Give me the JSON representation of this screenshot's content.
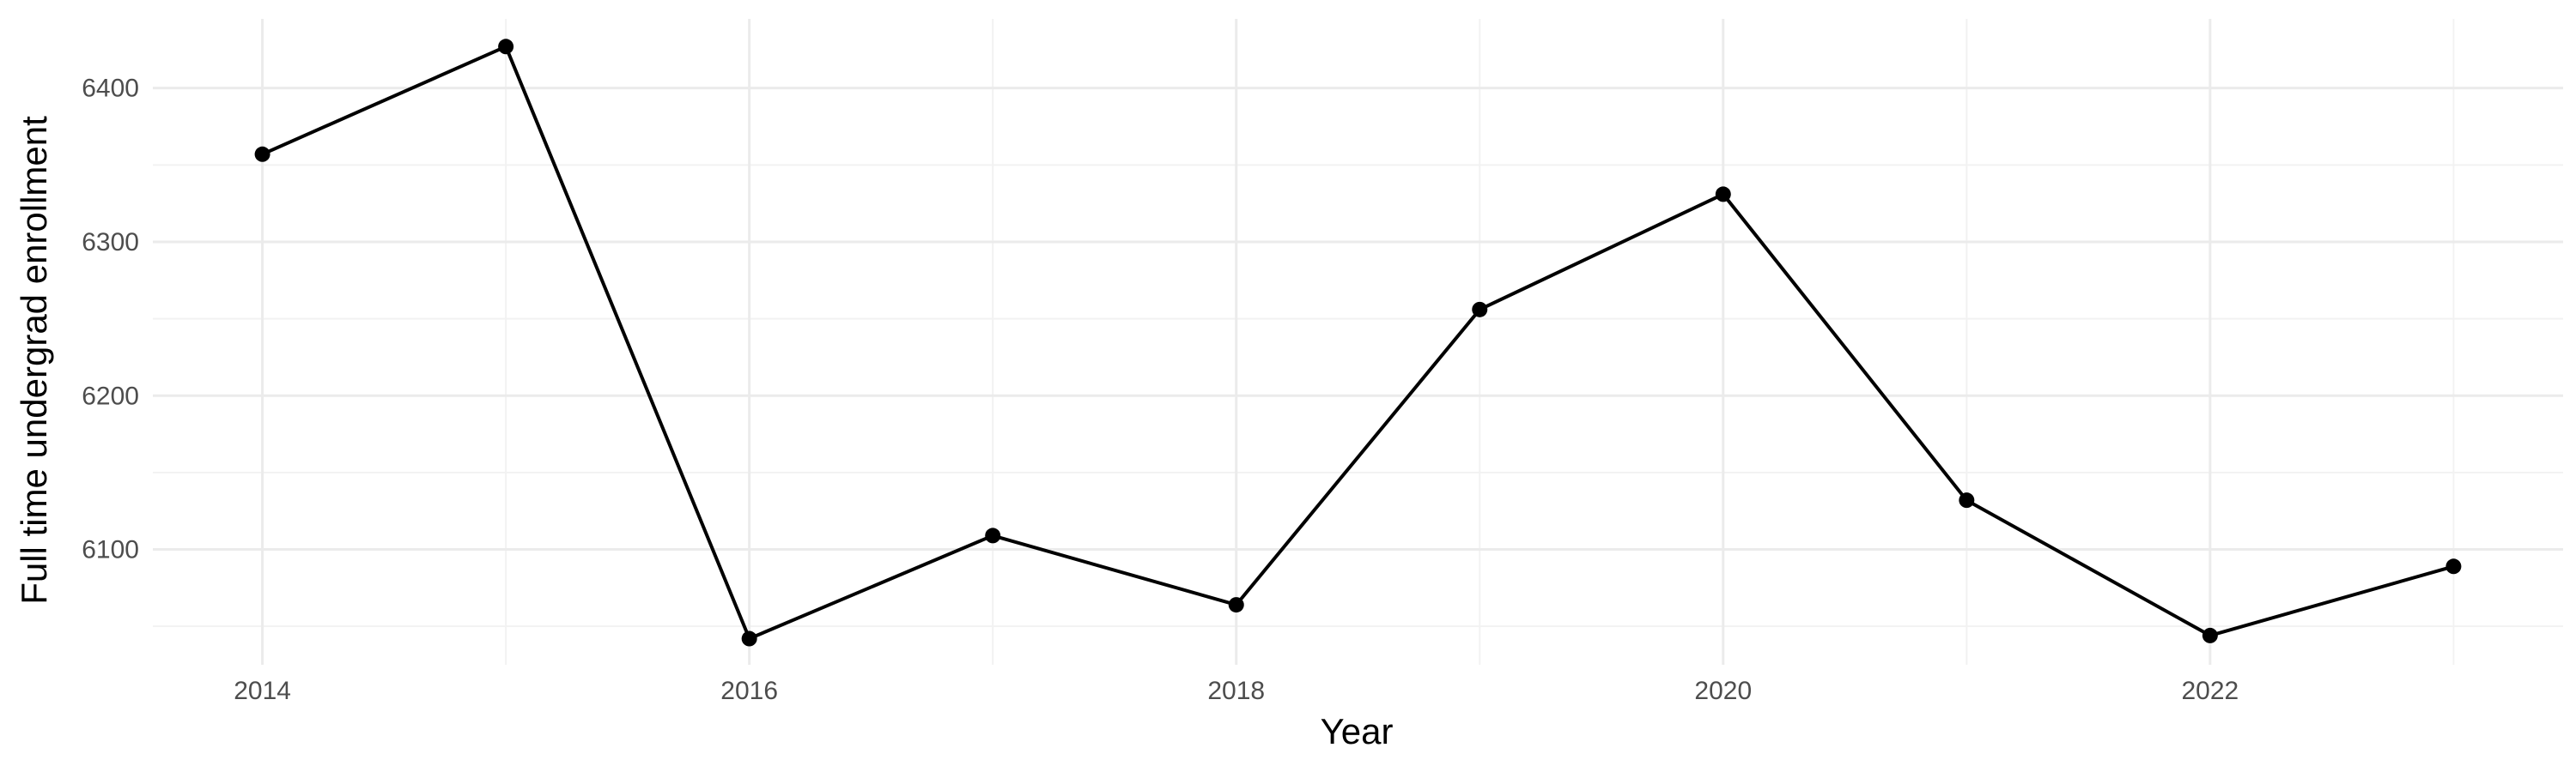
{
  "chart_data": {
    "type": "line",
    "title": "",
    "xlabel": "Year",
    "ylabel": "Full time undergrad enrollment",
    "x": [
      2014,
      2015,
      2016,
      2017,
      2018,
      2019,
      2020,
      2021,
      2022,
      2023
    ],
    "series": [
      {
        "values": [
          6357,
          6427,
          6042,
          6109,
          6064,
          6256,
          6331,
          6132,
          6044,
          6089
        ]
      }
    ],
    "xlim": [
      2013.55,
      2023.45
    ],
    "ylim": [
      6025,
      6445
    ],
    "x_ticks": [
      2014,
      2016,
      2018,
      2020,
      2022
    ],
    "x_tick_labels": [
      "2014",
      "2016",
      "2018",
      "2020",
      "2022"
    ],
    "x_minor_ticks": [
      2015,
      2017,
      2019,
      2021,
      2023
    ],
    "y_ticks": [
      6100,
      6200,
      6300,
      6400
    ],
    "y_tick_labels": [
      "6100",
      "6200",
      "6300",
      "6400"
    ],
    "y_minor_ticks": [
      6050,
      6150,
      6250,
      6350
    ],
    "grid": true,
    "legend": "none",
    "colors": {
      "line": "#000000",
      "point": "#000000",
      "grid_major": "#ebebeb",
      "grid_minor": "#f2f2f2",
      "tick_text": "#4d4d4d"
    }
  }
}
